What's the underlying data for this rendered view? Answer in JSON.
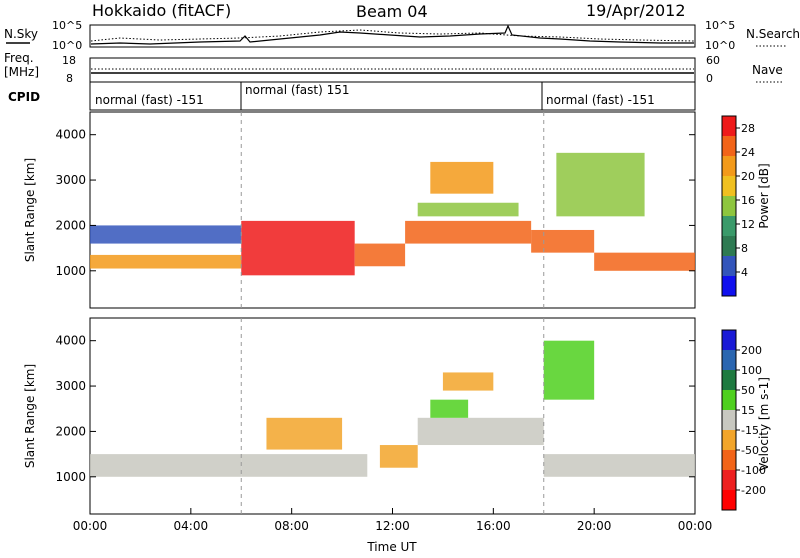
{
  "header": {
    "title": "Hokkaido (fitACF)",
    "beam": "Beam 04",
    "date": "19/Apr/2012"
  },
  "noise_panel": {
    "left_label": "N.Sky",
    "right_label": "N.Search",
    "y_top": "10^5",
    "y_bottom": "10^0"
  },
  "freq_panel": {
    "left_label_1": "Freq.",
    "left_label_2": "[MHz]",
    "right_label": "Nave",
    "left_ticks": [
      "18",
      "8"
    ],
    "right_ticks": [
      "60",
      "0"
    ]
  },
  "cpid_panel": {
    "label": "CPID",
    "segments": [
      {
        "name": "normal (fast) -151",
        "start_hour": 0,
        "end_hour": 6
      },
      {
        "name": "normal (fast) 151",
        "start_hour": 6,
        "end_hour": 18
      },
      {
        "name": "normal (fast) -151",
        "start_hour": 18,
        "end_hour": 24
      }
    ]
  },
  "chart_data": [
    {
      "type": "heatmap",
      "title": "Power",
      "ylabel": "Slant Range [km]",
      "xlabel": "",
      "ylim": [
        180,
        4500
      ],
      "yticks": [
        "1000",
        "2000",
        "3000",
        "4000"
      ],
      "ytick_values": [
        1000,
        2000,
        3000,
        4000
      ],
      "colorbar": {
        "label": "Power [dB]",
        "ticks": [
          "4",
          "8",
          "12",
          "16",
          "20",
          "24",
          "28"
        ],
        "tick_values": [
          4,
          8,
          12,
          16,
          20,
          24,
          28
        ],
        "range": [
          0,
          30
        ],
        "colors": [
          "#1010ee",
          "#3355bb",
          "#2e7a52",
          "#3a9a6a",
          "#8ec63f",
          "#f0c020",
          "#f39a1a",
          "#f26418",
          "#ee1a1a"
        ]
      },
      "bands": [
        {
          "t_start": 0,
          "t_end": 6,
          "r_low": 1050,
          "r_high": 1350,
          "value": 20
        },
        {
          "t_start": 0,
          "t_end": 6,
          "r_low": 1600,
          "r_high": 2000,
          "value": 6
        },
        {
          "t_start": 6,
          "t_end": 10.5,
          "r_low": 900,
          "r_high": 2100,
          "value": 28
        },
        {
          "t_start": 10.5,
          "t_end": 12.5,
          "r_low": 1100,
          "r_high": 1600,
          "value": 26
        },
        {
          "t_start": 12.5,
          "t_end": 17.5,
          "r_low": 1600,
          "r_high": 2100,
          "value": 26
        },
        {
          "t_start": 13,
          "t_end": 17,
          "r_low": 2200,
          "r_high": 2500,
          "value": 14
        },
        {
          "t_start": 13.5,
          "t_end": 16,
          "r_low": 2700,
          "r_high": 3400,
          "value": 22
        },
        {
          "t_start": 17.5,
          "t_end": 20,
          "r_low": 1400,
          "r_high": 1900,
          "value": 26
        },
        {
          "t_start": 20,
          "t_end": 24,
          "r_low": 1000,
          "r_high": 1400,
          "value": 24
        },
        {
          "t_start": 18.5,
          "t_end": 22,
          "r_low": 2200,
          "r_high": 3600,
          "value": 14
        }
      ]
    },
    {
      "type": "heatmap",
      "title": "Velocity",
      "ylabel": "Slant Range [km]",
      "xlabel": "Time UT",
      "ylim": [
        180,
        4500
      ],
      "yticks": [
        "1000",
        "2000",
        "3000",
        "4000"
      ],
      "ytick_values": [
        1000,
        2000,
        3000,
        4000
      ],
      "xticks": [
        "00:00",
        "04:00",
        "08:00",
        "12:00",
        "16:00",
        "20:00",
        "00:00"
      ],
      "xtick_hours": [
        0,
        4,
        8,
        12,
        16,
        20,
        24
      ],
      "colorbar": {
        "label": "Velocity [m s-1]",
        "ticks": [
          "200",
          "100",
          "50",
          "15",
          "-15",
          "-50",
          "-100",
          "-200"
        ],
        "tick_values": [
          200,
          100,
          50,
          15,
          -15,
          -50,
          -100,
          -200
        ],
        "colors": [
          "#1a1ad6",
          "#2a66b0",
          "#1e7a40",
          "#4fd01f",
          "#c8c8c0",
          "#f2a52a",
          "#f26418",
          "#ee2020",
          "#ff0000"
        ]
      },
      "bands": [
        {
          "t_start": 0,
          "t_end": 6,
          "r_low": 1000,
          "r_high": 1500,
          "value": 0
        },
        {
          "t_start": 6,
          "t_end": 11,
          "r_low": 1000,
          "r_high": 1500,
          "value": 0
        },
        {
          "t_start": 7,
          "t_end": 10,
          "r_low": 1600,
          "r_high": 2300,
          "value": -40
        },
        {
          "t_start": 11.5,
          "t_end": 13,
          "r_low": 1200,
          "r_high": 1700,
          "value": -40
        },
        {
          "t_start": 13,
          "t_end": 18,
          "r_low": 1700,
          "r_high": 2300,
          "value": 0
        },
        {
          "t_start": 13.5,
          "t_end": 15,
          "r_low": 2300,
          "r_high": 2700,
          "value": 40
        },
        {
          "t_start": 14,
          "t_end": 16,
          "r_low": 2900,
          "r_high": 3300,
          "value": -40
        },
        {
          "t_start": 18,
          "t_end": 24,
          "r_low": 1000,
          "r_high": 1500,
          "value": 0
        },
        {
          "t_start": 18,
          "t_end": 20,
          "r_low": 2700,
          "r_high": 4000,
          "value": 40
        }
      ]
    }
  ]
}
